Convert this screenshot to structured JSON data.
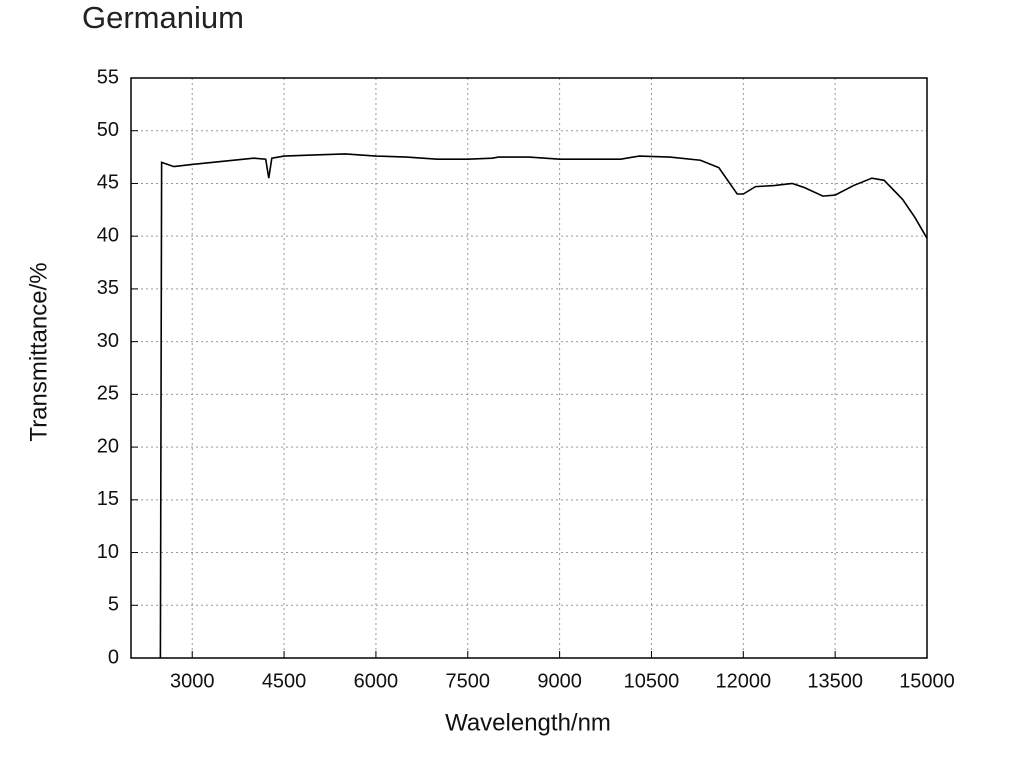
{
  "chart_data": {
    "type": "line",
    "title": "Germanium",
    "x_label": "Wavelength/nm",
    "y_label": "Transmittance/%",
    "x": [
      2480,
      2500,
      2700,
      3000,
      3500,
      4000,
      4200,
      4250,
      4300,
      4500,
      5000,
      5500,
      6000,
      6500,
      7000,
      7500,
      7900,
      8000,
      8500,
      9000,
      9500,
      10000,
      10300,
      10800,
      11300,
      11600,
      11900,
      12000,
      12200,
      12500,
      12800,
      13000,
      13300,
      13500,
      13800,
      14100,
      14300,
      14600,
      14800,
      15000
    ],
    "values": [
      0,
      47,
      46.6,
      46.8,
      47.1,
      47.4,
      47.3,
      45.5,
      47.4,
      47.6,
      47.7,
      47.8,
      47.6,
      47.5,
      47.3,
      47.3,
      47.4,
      47.5,
      47.5,
      47.3,
      47.3,
      47.3,
      47.6,
      47.5,
      47.2,
      46.5,
      44.0,
      44.0,
      44.7,
      44.8,
      45.0,
      44.6,
      43.8,
      43.9,
      44.8,
      45.5,
      45.3,
      43.5,
      41.8,
      39.8
    ],
    "color": "#000000",
    "xlim": [
      2000,
      15000
    ],
    "xticks": [
      3000,
      4500,
      6000,
      7500,
      9000,
      10500,
      12000,
      13500,
      15000
    ],
    "ylim": [
      0,
      55
    ],
    "yticks": [
      0,
      5,
      10,
      15,
      20,
      25,
      30,
      35,
      40,
      45,
      50,
      55
    ],
    "grid": true
  }
}
